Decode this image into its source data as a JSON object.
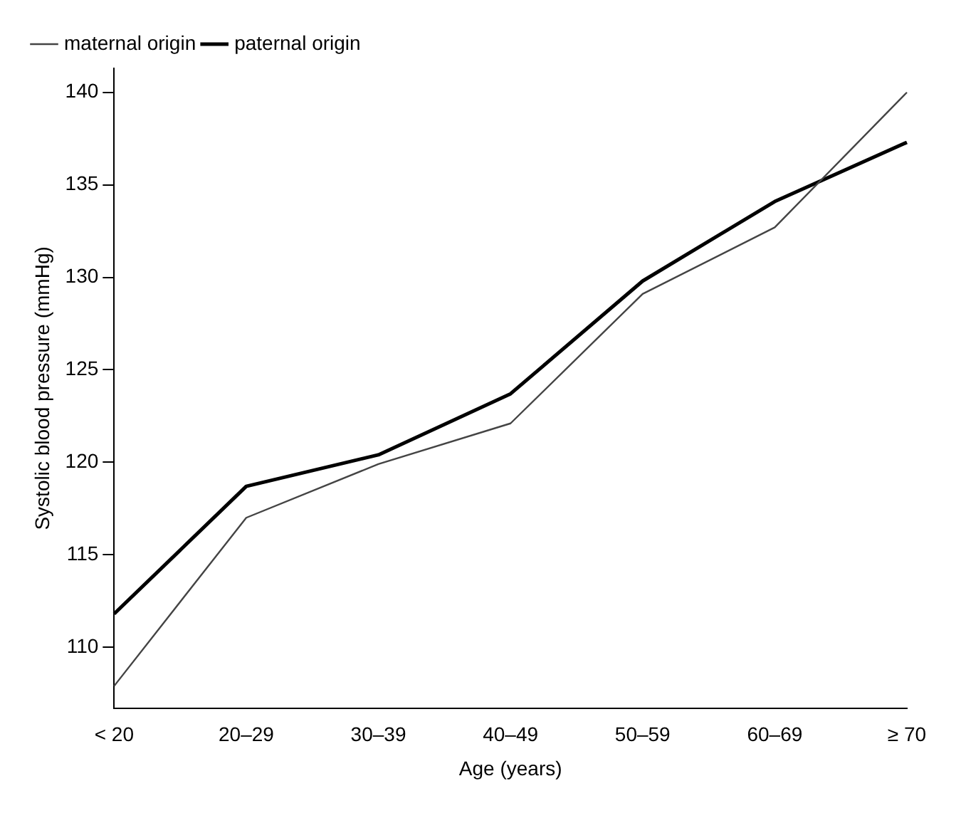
{
  "chart_data": {
    "type": "line",
    "xlabel": "Age (years)",
    "ylabel": "Systolic blood pressure (mmHg)",
    "categories": [
      "< 20",
      "20–29",
      "30–39",
      "40–49",
      "50–59",
      "60–69",
      "≥ 70"
    ],
    "series": [
      {
        "name": "maternal origin",
        "color": "#444444",
        "values": [
          107.9,
          117.0,
          119.9,
          122.1,
          129.1,
          132.7,
          140.0
        ]
      },
      {
        "name": "paternal origin",
        "color": "#000000",
        "values": [
          111.8,
          118.7,
          120.4,
          123.7,
          129.8,
          134.1,
          137.3
        ]
      }
    ],
    "ylim": [
      106.7,
      141.3
    ],
    "yticks": [
      110,
      115,
      120,
      125,
      130,
      135,
      140
    ],
    "grid": false,
    "legend": "top left",
    "marker": "none",
    "line_style": "solid"
  }
}
